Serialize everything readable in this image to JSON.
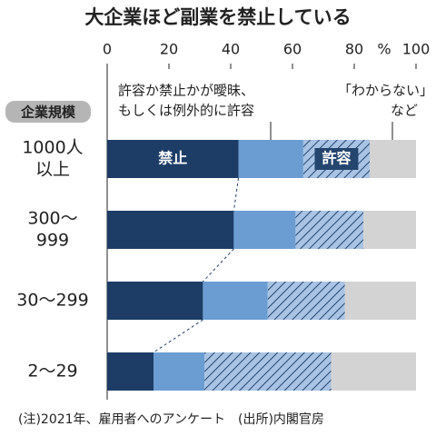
{
  "chart_data": {
    "type": "stacked-bar-horizontal",
    "title": "大企業ほど副業を禁止している",
    "xlabel": "%",
    "ylabel": "企業規模",
    "categories": [
      [
        "1000人",
        "以上"
      ],
      [
        "300〜",
        "999"
      ],
      [
        "30〜299"
      ],
      [
        "2〜29"
      ]
    ],
    "series": [
      {
        "name": "禁止",
        "color": "#1d3d66",
        "values": [
          42.5,
          41,
          31,
          15
        ]
      },
      {
        "name": [
          "許容か禁止かが曖昧、",
          "もしくは例外的に許容"
        ],
        "color": "#6b9dd3",
        "values": [
          21,
          20,
          21,
          16.5
        ]
      },
      {
        "name": "許容",
        "color": "#a8c3e3",
        "hatch": "#24456e",
        "values": [
          21.5,
          22,
          25,
          41
        ]
      },
      {
        "name": [
          "「わからない」",
          "など"
        ],
        "color": "#d3d3d3",
        "values": [
          15,
          17,
          23,
          27.5
        ]
      }
    ],
    "xlim": [
      0,
      100
    ],
    "xticks": [
      0,
      20,
      40,
      60,
      80,
      100
    ],
    "note": "(注)2021年、雇用者へのアンケート　(出所)内閣官房"
  }
}
